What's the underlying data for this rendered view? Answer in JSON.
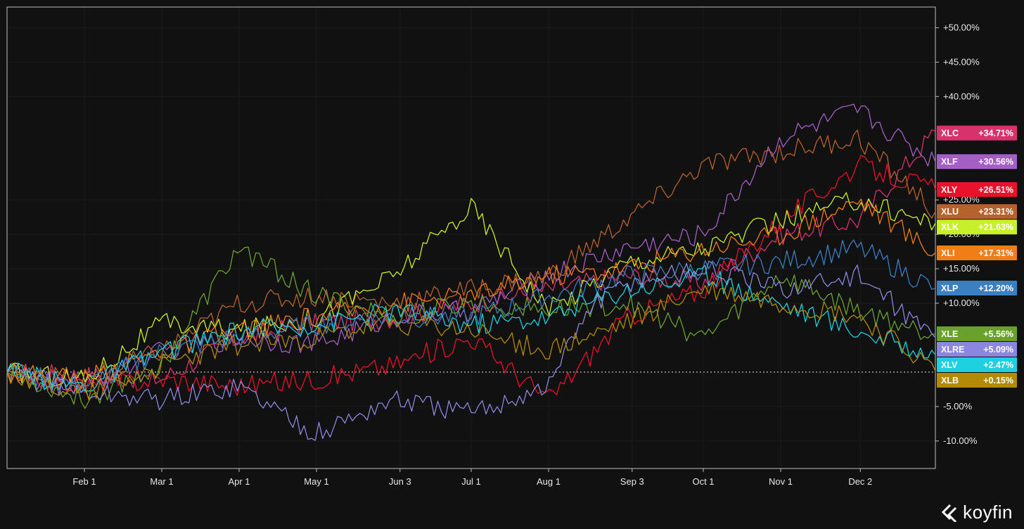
{
  "brand": {
    "name": "koyfin"
  },
  "chart_data": {
    "type": "line",
    "x_ticks": [
      "Feb 1",
      "Mar 1",
      "Apr 1",
      "May 1",
      "Jun 3",
      "Jul 1",
      "Aug 1",
      "Sep 3",
      "Oct 1",
      "Nov 1",
      "Dec 2"
    ],
    "x_range": [
      "Jan 2",
      "Dec 31"
    ],
    "y_ticks": [
      "-10.00%",
      "-5.00%",
      "+10.00%",
      "+15.00%",
      "+20.00%",
      "+25.00%",
      "+40.00%",
      "+45.00%",
      "+50.00%"
    ],
    "ylim": [
      -14,
      53
    ],
    "reference_line": 0,
    "grid": true,
    "series": [
      {
        "name": "XLC",
        "color": "#d6336c",
        "last_label": "+34.71%",
        "last": 34.71,
        "points": [
          [
            0,
            0
          ],
          [
            2,
            -1
          ],
          [
            3,
            5
          ],
          [
            4,
            7
          ],
          [
            5,
            8
          ],
          [
            6,
            10
          ],
          [
            7,
            12
          ],
          [
            8,
            14
          ],
          [
            9,
            13
          ],
          [
            10,
            20
          ],
          [
            11,
            22
          ],
          [
            12,
            35
          ]
        ]
      },
      {
        "name": "XLF",
        "color": "#a45fc6",
        "last_label": "+30.56%",
        "last": 30.56,
        "points": [
          [
            0,
            0
          ],
          [
            1,
            -2
          ],
          [
            2,
            3
          ],
          [
            3,
            5
          ],
          [
            4,
            4
          ],
          [
            5,
            8
          ],
          [
            6,
            9
          ],
          [
            7,
            14
          ],
          [
            8,
            18
          ],
          [
            9,
            20
          ],
          [
            10,
            34
          ],
          [
            11,
            38
          ],
          [
            12,
            30.5
          ]
        ]
      },
      {
        "name": "XLY",
        "color": "#e8132b",
        "last_label": "+26.51%",
        "last": 26.51,
        "points": [
          [
            0,
            0
          ],
          [
            1,
            -2
          ],
          [
            2,
            -1
          ],
          [
            3,
            -2
          ],
          [
            4,
            -1
          ],
          [
            5,
            1
          ],
          [
            6,
            5
          ],
          [
            7,
            -4
          ],
          [
            7.5,
            2
          ],
          [
            8,
            8
          ],
          [
            9,
            12
          ],
          [
            10,
            22
          ],
          [
            11,
            30
          ],
          [
            12,
            26.5
          ]
        ]
      },
      {
        "name": "XLU",
        "color": "#b6622d",
        "last_label": "+23.31%",
        "last": 23.31,
        "points": [
          [
            0,
            0
          ],
          [
            1,
            -1
          ],
          [
            2,
            3
          ],
          [
            3,
            10
          ],
          [
            4,
            11
          ],
          [
            5,
            10
          ],
          [
            6,
            12
          ],
          [
            7,
            14
          ],
          [
            8,
            22
          ],
          [
            9,
            30
          ],
          [
            10,
            32
          ],
          [
            11,
            34
          ],
          [
            12,
            23.3
          ]
        ]
      },
      {
        "name": "XLK",
        "color": "#c8f028",
        "last_label": "+21.63%",
        "last": 21.63,
        "points": [
          [
            0,
            0
          ],
          [
            1,
            -1
          ],
          [
            2,
            7
          ],
          [
            3,
            6
          ],
          [
            4,
            8
          ],
          [
            5,
            14
          ],
          [
            6,
            24
          ],
          [
            7,
            9
          ],
          [
            8,
            16
          ],
          [
            9,
            18
          ],
          [
            10,
            22
          ],
          [
            11,
            25
          ],
          [
            12,
            21.6
          ]
        ]
      },
      {
        "name": "XLI",
        "color": "#f07d16",
        "last_label": "+17.31%",
        "last": 17.31,
        "points": [
          [
            0,
            0
          ],
          [
            1,
            -1
          ],
          [
            2,
            3
          ],
          [
            3,
            6
          ],
          [
            4,
            8
          ],
          [
            5,
            10
          ],
          [
            6,
            11
          ],
          [
            7,
            14
          ],
          [
            8,
            15
          ],
          [
            9,
            18
          ],
          [
            10,
            20
          ],
          [
            11,
            25
          ],
          [
            12,
            17.3
          ]
        ]
      },
      {
        "name": "XLP",
        "color": "#3a7fc2",
        "last_label": "+12.20%",
        "last": 12.2,
        "points": [
          [
            0,
            0
          ],
          [
            1,
            -2
          ],
          [
            2,
            3
          ],
          [
            3,
            5
          ],
          [
            4,
            7
          ],
          [
            5,
            8
          ],
          [
            6,
            8
          ],
          [
            7,
            11
          ],
          [
            8,
            14
          ],
          [
            9,
            15
          ],
          [
            10,
            16
          ],
          [
            11,
            18
          ],
          [
            12,
            12.2
          ]
        ]
      },
      {
        "name": "XLE",
        "color": "#6aa12c",
        "last_label": "+5.56%",
        "last": 5.56,
        "points": [
          [
            0,
            0
          ],
          [
            1,
            -4
          ],
          [
            2,
            1
          ],
          [
            3,
            18
          ],
          [
            4,
            11
          ],
          [
            5,
            8
          ],
          [
            6,
            10
          ],
          [
            7,
            9
          ],
          [
            8,
            10
          ],
          [
            9,
            5
          ],
          [
            10,
            14
          ],
          [
            11,
            9
          ],
          [
            12,
            5.5
          ]
        ]
      },
      {
        "name": "XLRE",
        "color": "#8b87e0",
        "last_label": "+5.09%",
        "last": 5.09,
        "points": [
          [
            0,
            0
          ],
          [
            1,
            -3
          ],
          [
            2,
            -4
          ],
          [
            3,
            -2
          ],
          [
            4,
            -9
          ],
          [
            5,
            -4
          ],
          [
            6,
            -6
          ],
          [
            7,
            -2
          ],
          [
            7.5,
            9
          ],
          [
            8,
            13
          ],
          [
            9,
            15
          ],
          [
            10,
            12
          ],
          [
            11,
            14
          ],
          [
            12,
            5
          ]
        ]
      },
      {
        "name": "XLV",
        "color": "#1fd0e0",
        "last_label": "+2.47%",
        "last": 2.47,
        "points": [
          [
            0,
            0
          ],
          [
            1,
            -2
          ],
          [
            2,
            3
          ],
          [
            3,
            6
          ],
          [
            4,
            7
          ],
          [
            5,
            9
          ],
          [
            6,
            7
          ],
          [
            7,
            8
          ],
          [
            8,
            12
          ],
          [
            9,
            14
          ],
          [
            10,
            10
          ],
          [
            11,
            6
          ],
          [
            12,
            2.5
          ]
        ]
      },
      {
        "name": "XLB",
        "color": "#b28a06",
        "last_label": "+0.15%",
        "last": 0.15,
        "points": [
          [
            0,
            0
          ],
          [
            1,
            -3
          ],
          [
            2,
            1
          ],
          [
            3,
            4
          ],
          [
            4,
            5
          ],
          [
            5,
            7
          ],
          [
            6,
            6
          ],
          [
            7,
            3
          ],
          [
            8,
            7
          ],
          [
            9,
            12
          ],
          [
            10,
            10
          ],
          [
            11,
            8
          ],
          [
            12,
            0.15
          ]
        ]
      }
    ]
  }
}
